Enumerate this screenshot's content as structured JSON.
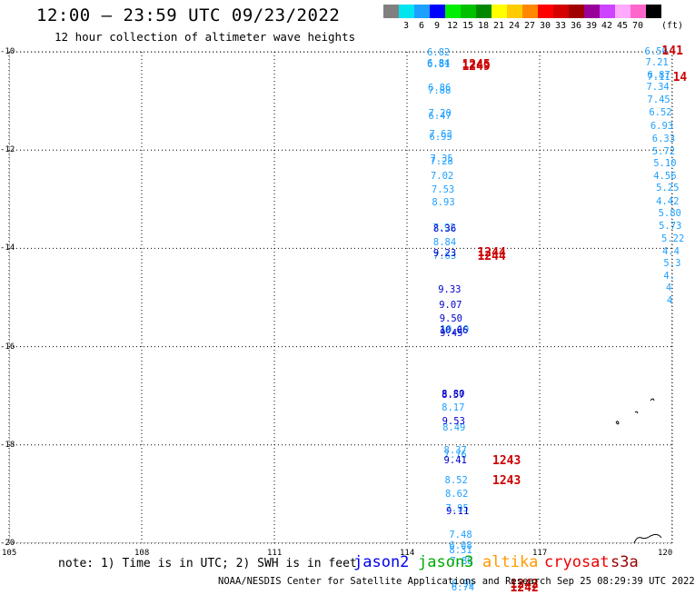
{
  "header": {
    "title": "12:00 – 23:59 UTC 09/23/2022",
    "subtitle": "12 hour collection of altimeter wave heights"
  },
  "legend": {
    "unit": "(ft)",
    "swatches": [
      {
        "color": "#808080",
        "label": ""
      },
      {
        "color": "#00e5ee",
        "label": "3"
      },
      {
        "color": "#1ea0ff",
        "label": "6"
      },
      {
        "color": "#0000ff",
        "label": "9"
      },
      {
        "color": "#00ee00",
        "label": "12"
      },
      {
        "color": "#00c000",
        "label": "15"
      },
      {
        "color": "#008800",
        "label": "18"
      },
      {
        "color": "#ffff00",
        "label": "21"
      },
      {
        "color": "#ffcc00",
        "label": "24"
      },
      {
        "color": "#ff8800",
        "label": "27"
      },
      {
        "color": "#ff0000",
        "label": "30"
      },
      {
        "color": "#d40000",
        "label": "33"
      },
      {
        "color": "#a00000",
        "label": "36"
      },
      {
        "color": "#990099",
        "label": "39"
      },
      {
        "color": "#cc44ff",
        "label": "42"
      },
      {
        "color": "#ffaaff",
        "label": "45"
      },
      {
        "color": "#ff66cc",
        "label": "70"
      },
      {
        "color": "#000000",
        "label": ""
      }
    ]
  },
  "map": {
    "lat_labels": [
      "-10",
      "-12",
      "-14",
      "-16",
      "-18",
      "-20"
    ],
    "lon_labels": [
      "105",
      "108",
      "111",
      "114",
      "117",
      "120"
    ],
    "grid": "dotted",
    "tracks": [
      {
        "satellite": "jason2",
        "color": "#1ea0ff",
        "readings": [
          {
            "lon": 114.7,
            "lat": -10.04,
            "value": "6.82"
          },
          {
            "lon": 114.7,
            "lat": -10.28,
            "value": "6.81"
          },
          {
            "lon": 114.7,
            "lat": -10.25,
            "value": "6.84"
          },
          {
            "lon": 114.72,
            "lat": -10.76,
            "value": "6.86"
          },
          {
            "lon": 114.72,
            "lat": -10.82,
            "value": "7.88"
          },
          {
            "lon": 114.73,
            "lat": -11.28,
            "value": "7.20"
          },
          {
            "lon": 114.73,
            "lat": -11.33,
            "value": "6.47"
          },
          {
            "lon": 114.75,
            "lat": -11.7,
            "value": "7.63"
          },
          {
            "lon": 114.75,
            "lat": -11.75,
            "value": "6.95"
          },
          {
            "lon": 114.77,
            "lat": -12.2,
            "value": "7.35"
          },
          {
            "lon": 114.77,
            "lat": -12.26,
            "value": "7.28"
          },
          {
            "lon": 114.78,
            "lat": -12.56,
            "value": "7.02"
          },
          {
            "lon": 114.8,
            "lat": -12.83,
            "value": "7.53"
          },
          {
            "lon": 114.81,
            "lat": -13.08,
            "value": "8.93"
          },
          {
            "lon": 114.83,
            "lat": -13.6,
            "value": "7.92"
          },
          {
            "lon": 114.84,
            "lat": -13.9,
            "value": "8.84"
          },
          {
            "lon": 114.84,
            "lat": -14.17,
            "value": "7.63"
          },
          {
            "lon": 115.0,
            "lat": -15.68,
            "value": "10.19"
          },
          {
            "lon": 115.03,
            "lat": -17.27,
            "value": "8.17"
          },
          {
            "lon": 115.05,
            "lat": -17.67,
            "value": "8.49"
          },
          {
            "lon": 115.08,
            "lat": -18.13,
            "value": "8.37"
          },
          {
            "lon": 115.08,
            "lat": -18.22,
            "value": "7.76"
          },
          {
            "lon": 115.1,
            "lat": -18.74,
            "value": "8.52"
          },
          {
            "lon": 115.11,
            "lat": -19.02,
            "value": "8.62"
          },
          {
            "lon": 115.12,
            "lat": -19.32,
            "value": "7.95"
          },
          {
            "lon": 115.2,
            "lat": -19.86,
            "value": "7.48"
          },
          {
            "lon": 115.2,
            "lat": -20.08,
            "value": "6.08"
          },
          {
            "lon": 115.2,
            "lat": -20.17,
            "value": "8.31"
          },
          {
            "lon": 115.22,
            "lat": -20.39,
            "value": "7.88"
          },
          {
            "lon": 115.25,
            "lat": -20.85,
            "value": "6.90"
          },
          {
            "lon": 115.25,
            "lat": -20.93,
            "value": "6.74"
          }
        ]
      },
      {
        "satellite": "jason2",
        "color": "#0000cc",
        "readings": [
          {
            "lon": 114.84,
            "lat": -13.63,
            "value": "8.36"
          },
          {
            "lon": 114.84,
            "lat": -14.12,
            "value": "9.23"
          },
          {
            "lon": 114.95,
            "lat": -14.87,
            "value": "9.33"
          },
          {
            "lon": 114.97,
            "lat": -15.17,
            "value": "9.07"
          },
          {
            "lon": 114.98,
            "lat": -15.45,
            "value": "9.50"
          },
          {
            "lon": 114.98,
            "lat": -15.7,
            "value": "10.06"
          },
          {
            "lon": 114.99,
            "lat": -15.74,
            "value": "9.45"
          },
          {
            "lon": 115.03,
            "lat": -16.98,
            "value": "8.80"
          },
          {
            "lon": 115.03,
            "lat": -17.0,
            "value": "8.57"
          },
          {
            "lon": 115.04,
            "lat": -17.55,
            "value": "9.53"
          },
          {
            "lon": 115.08,
            "lat": -18.33,
            "value": "9.41"
          },
          {
            "lon": 115.13,
            "lat": -19.38,
            "value": "9.11"
          }
        ]
      },
      {
        "satellite": "jason2",
        "color": "#1ea0ff",
        "readings": [
          {
            "lon": 119.62,
            "lat": -10.01,
            "value": "6.50"
          },
          {
            "lon": 119.64,
            "lat": -10.24,
            "value": "7.21"
          },
          {
            "lon": 119.68,
            "lat": -10.49,
            "value": "6.87"
          },
          {
            "lon": 119.68,
            "lat": -10.53,
            "value": "7.11"
          },
          {
            "lon": 119.66,
            "lat": -10.74,
            "value": "7.34"
          },
          {
            "lon": 119.68,
            "lat": -11.0,
            "value": "7.45"
          },
          {
            "lon": 119.72,
            "lat": -11.25,
            "value": "6.52"
          },
          {
            "lon": 119.75,
            "lat": -11.53,
            "value": "6.93"
          },
          {
            "lon": 119.79,
            "lat": -11.79,
            "value": "6.33"
          },
          {
            "lon": 119.79,
            "lat": -12.05,
            "value": "5.72"
          },
          {
            "lon": 119.82,
            "lat": -12.3,
            "value": "5.10"
          },
          {
            "lon": 119.82,
            "lat": -12.55,
            "value": "4.56"
          },
          {
            "lon": 119.88,
            "lat": -12.8,
            "value": "5.25"
          },
          {
            "lon": 119.88,
            "lat": -13.06,
            "value": "4.42"
          },
          {
            "lon": 119.93,
            "lat": -13.31,
            "value": "5.80"
          },
          {
            "lon": 119.94,
            "lat": -13.56,
            "value": "5.73"
          },
          {
            "lon": 120.0,
            "lat": -13.83,
            "value": "5.22"
          },
          {
            "lon": 120.02,
            "lat": -14.08,
            "value": "4.4"
          },
          {
            "lon": 120.05,
            "lat": -14.33,
            "value": "5.3"
          },
          {
            "lon": 120.05,
            "lat": -14.58,
            "value": "4."
          },
          {
            "lon": 120.1,
            "lat": -14.82,
            "value": "4"
          },
          {
            "lon": 120.12,
            "lat": -15.08,
            "value": "4"
          }
        ]
      }
    ],
    "time_labels": [
      {
        "lon": 115.53,
        "lat": -10.28,
        "text": "1245"
      },
      {
        "lon": 115.53,
        "lat": -10.32,
        "text": "1249"
      },
      {
        "lon": 115.88,
        "lat": -14.1,
        "text": "1244"
      },
      {
        "lon": 115.88,
        "lat": -14.18,
        "text": "1244"
      },
      {
        "lon": 116.22,
        "lat": -18.33,
        "text": "1243"
      },
      {
        "lon": 116.22,
        "lat": -18.75,
        "text": "1243"
      },
      {
        "lon": 116.62,
        "lat": -20.85,
        "text": "1242"
      },
      {
        "lon": 116.62,
        "lat": -20.93,
        "text": "1242"
      },
      {
        "lon": 120.05,
        "lat": -10.0,
        "text": "141"
      },
      {
        "lon": 120.3,
        "lat": -10.53,
        "text": "14"
      }
    ]
  },
  "note": "note: 1) Time is in UTC; 2) SWH is in feet",
  "satellites": [
    {
      "name": "jason2",
      "color": "#0000ee"
    },
    {
      "name": "jason3",
      "color": "#00aa00"
    },
    {
      "name": "altika",
      "color": "#ff9900"
    },
    {
      "name": "cryosat",
      "color": "#ee0000"
    },
    {
      "name": "s3a",
      "color": "#990000"
    }
  ],
  "footer": "NOAA/NESDIS Center for Satellite Applications and Research    Sep 25 08:29:39 UTC 2022"
}
